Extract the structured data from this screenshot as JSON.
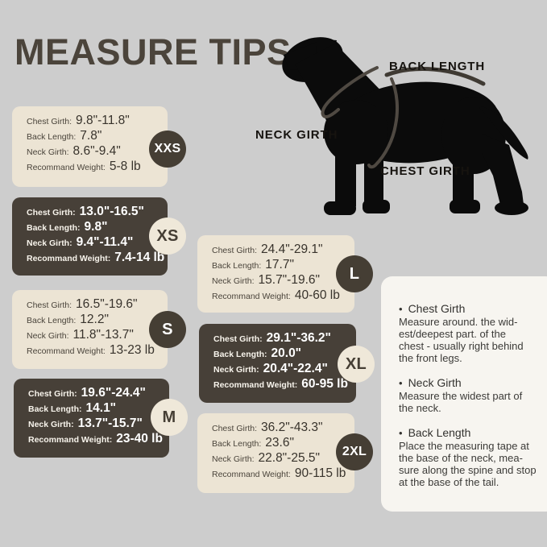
{
  "title": "MEASURE TIPS",
  "diagram": {
    "labels": {
      "back_length": "BACK LENGTH",
      "neck_girth": "NECK GIRTH",
      "chest_girth": "CHEST GIRTH"
    }
  },
  "icons": {
    "bullet": "•"
  },
  "row_labels": [
    "Chest Girth:",
    "Back Length:",
    "Neck Girth:",
    "Recommand Weight:"
  ],
  "sizes": [
    {
      "size": "XXS",
      "card_style": "cream",
      "badge_style": "dark",
      "chest_girth": "9.8\"-11.8\"",
      "back_length": "7.8\"",
      "neck_girth": "8.6\"-9.4\"",
      "recommand_weight": "5-8 lb"
    },
    {
      "size": "XS",
      "card_style": "dark",
      "badge_style": "cream",
      "chest_girth": "13.0\"-16.5\"",
      "back_length": "9.8\"",
      "neck_girth": "9.4\"-11.4\"",
      "recommand_weight": "7.4-14 lb"
    },
    {
      "size": "S",
      "card_style": "cream",
      "badge_style": "dark",
      "chest_girth": "16.5\"-19.6\"",
      "back_length": "12.2\"",
      "neck_girth": "11.8\"-13.7\"",
      "recommand_weight": "13-23 lb"
    },
    {
      "size": "M",
      "card_style": "dark",
      "badge_style": "cream",
      "chest_girth": "19.6\"-24.4\"",
      "back_length": "14.1\"",
      "neck_girth": "13.7\"-15.7\"",
      "recommand_weight": "23-40 lb"
    },
    {
      "size": "L",
      "card_style": "cream",
      "badge_style": "dark",
      "chest_girth": "24.4\"-29.1\"",
      "back_length": "17.7\"",
      "neck_girth": "15.7\"-19.6\"",
      "recommand_weight": "40-60 lb"
    },
    {
      "size": "XL",
      "card_style": "dark",
      "badge_style": "cream",
      "chest_girth": "29.1\"-36.2\"",
      "back_length": "20.0\"",
      "neck_girth": "20.4\"-22.4\"",
      "recommand_weight": "60-95 lb"
    },
    {
      "size": "2XL",
      "card_style": "cream",
      "badge_style": "dark",
      "chest_girth": "36.2\"-43.3\"",
      "back_length": "23.6\"",
      "neck_girth": "22.8\"-25.5\"",
      "recommand_weight": "90-115 lb"
    }
  ],
  "tips": {
    "sections": [
      {
        "title": "Chest Girth",
        "lines": [
          "Measure around. the wid-",
          "est/deepest part. of the",
          "chest - usually right behind",
          "the front legs."
        ]
      },
      {
        "title": "Neck Girth",
        "lines": [
          "Measure the widest part of",
          "the neck."
        ]
      },
      {
        "title": "Back Length",
        "lines": [
          "Place the measuring tape at",
          "the base of the neck, mea-",
          "sure along the spine and stop",
          "at the base of the tail."
        ]
      }
    ]
  },
  "colors": {
    "background": "#cdcdcd",
    "card_cream": "#ece4d4",
    "card_dark": "#474038",
    "badge_dark": "#453e34",
    "badge_cream": "#efe8d9",
    "tips_panel": "#f7f5f0",
    "title_text": "#4b443b",
    "dog_silhouette": "#0b0b0b",
    "measure_arc": "#4f4942"
  }
}
